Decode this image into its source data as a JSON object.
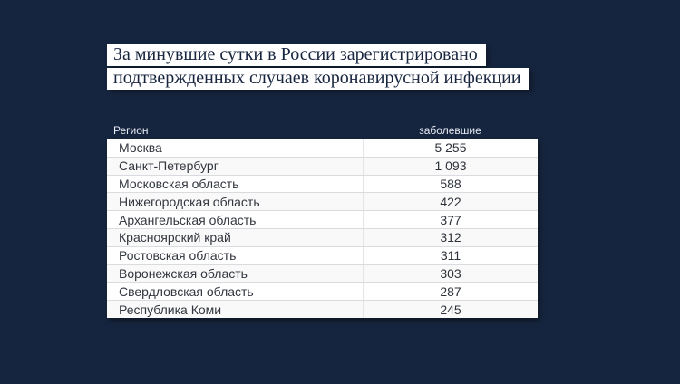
{
  "colors": {
    "background": "#16253F",
    "title_box_bg": "#FFFFFF",
    "title_text": "#17253F",
    "header_text": "#E7EBF3",
    "table_text": "#32363E",
    "row_stripe": "#F9F9FA",
    "row_separator": "#D9DBDE"
  },
  "title": {
    "lines": [
      "За минувшие сутки в России зарегистрировано",
      "подтвержденных случаев коронавирусной инфекции"
    ]
  },
  "table": {
    "columns": {
      "region": "Регион",
      "value": "заболевшие"
    },
    "rows": [
      {
        "region": "Москва",
        "value": "5 255"
      },
      {
        "region": "Санкт-Петербург",
        "value": "1 093"
      },
      {
        "region": "Московская область",
        "value": "588"
      },
      {
        "region": "Нижегородская область",
        "value": "422"
      },
      {
        "region": "Архангельская область",
        "value": "377"
      },
      {
        "region": "Красноярский край",
        "value": "312"
      },
      {
        "region": "Ростовская область",
        "value": "311"
      },
      {
        "region": "Воронежская область",
        "value": "303"
      },
      {
        "region": "Свердловская область",
        "value": "287"
      },
      {
        "region": "Республика Коми",
        "value": "245"
      }
    ]
  },
  "chart_data": {
    "type": "table",
    "title": "За минувшие сутки в России зарегистрировано подтвержденных случаев коронавирусной инфекции",
    "columns": [
      "Регион",
      "заболевшие"
    ],
    "categories": [
      "Москва",
      "Санкт-Петербург",
      "Московская область",
      "Нижегородская область",
      "Архангельская область",
      "Красноярский край",
      "Ростовская область",
      "Воронежская область",
      "Свердловская область",
      "Республика Коми"
    ],
    "values": [
      5255,
      1093,
      588,
      422,
      377,
      312,
      311,
      303,
      287,
      245
    ]
  }
}
